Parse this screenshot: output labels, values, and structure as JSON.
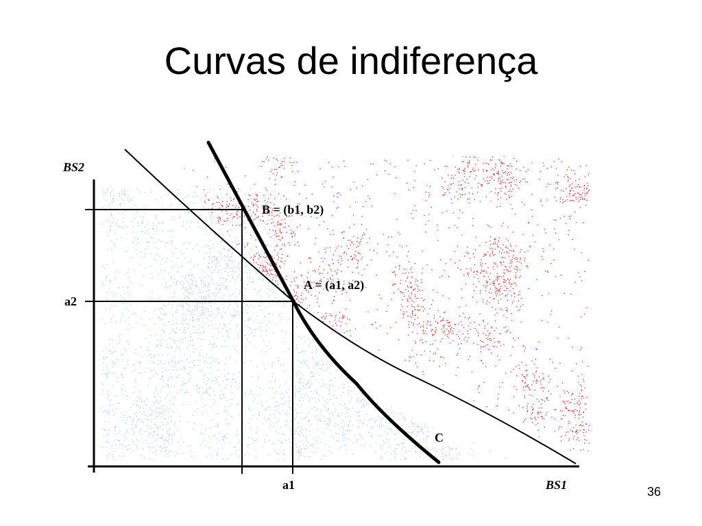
{
  "slide": {
    "title": "Curvas de indiferença",
    "page_number": "36"
  },
  "diagram": {
    "axis_labels": {
      "y_axis": "BS2",
      "x_axis": "BS1",
      "a1": "a1",
      "a2": "a2"
    },
    "point_labels": {
      "A": "A = (a1, a2)",
      "B": "B = (b1, b2)",
      "C": "C"
    },
    "colors": {
      "preferred_region": "#e31b1b",
      "dispreferred_region": "#a9cbeb",
      "curves": "#000000"
    }
  }
}
